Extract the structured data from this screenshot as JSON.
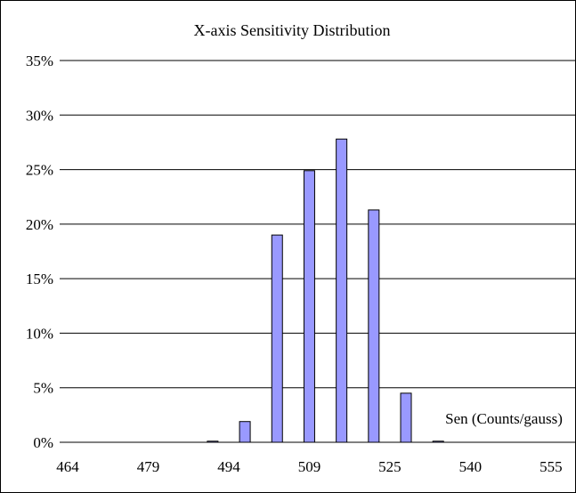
{
  "chart_data": {
    "type": "bar",
    "title": "X-axis Sensitivity Distribution",
    "xlabel": "Sen (Counts/gauss)",
    "ylabel": "",
    "y_ticks": [
      "0%",
      "5%",
      "10%",
      "15%",
      "20%",
      "25%",
      "30%",
      "35%"
    ],
    "ylim": [
      0,
      35
    ],
    "x_ticks": [
      "464",
      "479",
      "494",
      "509",
      "525",
      "540",
      "555"
    ],
    "categories": [
      "464",
      "467",
      "470",
      "473",
      "476",
      "479",
      "482",
      "485",
      "488",
      "491",
      "494",
      "497",
      "500",
      "503",
      "506",
      "509",
      "512",
      "515",
      "518",
      "521",
      "525",
      "528",
      "531",
      "534",
      "537",
      "540",
      "543",
      "546",
      "549",
      "552",
      "555",
      "558"
    ],
    "values": [
      0,
      0,
      0,
      0,
      0,
      0,
      0,
      0,
      0,
      0.1,
      0,
      1.9,
      0,
      19.0,
      0,
      24.9,
      0,
      27.8,
      0,
      21.3,
      0,
      4.5,
      0,
      0.1,
      0,
      0,
      0,
      0,
      0,
      0,
      0,
      0
    ],
    "grid": true,
    "legend": "none",
    "colors": {
      "bar_fill": "#9999ff",
      "bar_stroke": "#000000",
      "grid": "#000000",
      "frame": "#000000"
    }
  }
}
